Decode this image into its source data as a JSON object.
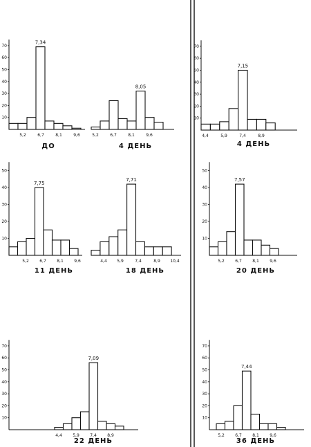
{
  "chart_data": [
    {
      "type": "bar",
      "caption": "ДО",
      "x_ticks": [
        "5,2",
        "6,7",
        "8,1",
        "9,6"
      ],
      "peak_label": "7,34",
      "y_ticks": [
        "10",
        "20",
        "30",
        "40",
        "50",
        "60",
        "70"
      ],
      "ylim": [
        0,
        75
      ],
      "values": [
        5,
        5,
        10,
        69,
        7,
        5,
        3,
        1
      ]
    },
    {
      "type": "bar",
      "caption": "4  ДЕНЬ",
      "x_ticks": [
        "5,2",
        "6,7",
        "8,1",
        "9,6"
      ],
      "peak_label": "8,05",
      "y_ticks": [],
      "ylim": [
        0,
        75
      ],
      "values": [
        2,
        7,
        24,
        9,
        7,
        32,
        10,
        6
      ]
    },
    {
      "type": "bar",
      "caption": "4  ДЕНЬ",
      "x_ticks": [
        "4,4",
        "5,9",
        "7,4",
        "8,9"
      ],
      "peak_label": "7,15",
      "y_ticks": [
        "10",
        "20",
        "30",
        "40",
        "50",
        "60",
        "70"
      ],
      "ylim": [
        0,
        75
      ],
      "values": [
        5,
        5,
        7,
        18,
        50,
        9,
        9,
        6
      ]
    },
    {
      "type": "bar",
      "caption": "11  ДЕНЬ",
      "x_ticks": [
        "5,2",
        "6,7",
        "8,1",
        "9,6"
      ],
      "peak_label": "7,75",
      "y_ticks": [
        "10",
        "20",
        "30",
        "40",
        "50"
      ],
      "ylim": [
        0,
        55
      ],
      "values": [
        5,
        8,
        10,
        40,
        15,
        9,
        9,
        4
      ]
    },
    {
      "type": "bar",
      "caption": "18  ДЕНЬ",
      "x_ticks": [
        "4,4",
        "5,9",
        "7,4",
        "8,9",
        "10,4"
      ],
      "peak_label": "7,71",
      "y_ticks": [],
      "ylim": [
        0,
        55
      ],
      "values": [
        3,
        8,
        11,
        15,
        42,
        8,
        5,
        5,
        5
      ]
    },
    {
      "type": "bar",
      "caption": "20  ДЕНЬ",
      "x_ticks": [
        "5,2",
        "6,7",
        "8,1",
        "9,6"
      ],
      "peak_label": "7,57",
      "y_ticks": [
        "10",
        "20",
        "30",
        "40",
        "50"
      ],
      "ylim": [
        0,
        55
      ],
      "values": [
        5,
        8,
        14,
        42,
        9,
        9,
        6,
        4
      ]
    },
    {
      "type": "bar",
      "caption": "22  ДЕНЬ",
      "x_ticks": [
        "4,4",
        "5,9",
        "7,4",
        "8,9"
      ],
      "peak_label": "7,09",
      "y_ticks": [
        "10",
        "20",
        "30",
        "40",
        "50",
        "60",
        "70"
      ],
      "ylim": [
        0,
        75
      ],
      "values": [
        2,
        5,
        10,
        15,
        56,
        7,
        5,
        3
      ]
    },
    {
      "type": "bar",
      "caption": "36  ДЕНЬ",
      "x_ticks": [
        "5,2",
        "6,7",
        "8,1",
        "9,6"
      ],
      "peak_label": "7,44",
      "y_ticks": [
        "10",
        "20",
        "30",
        "40",
        "50",
        "60",
        "70"
      ],
      "ylim": [
        0,
        75
      ],
      "values": [
        5,
        7,
        20,
        49,
        13,
        5,
        5,
        2
      ]
    }
  ]
}
